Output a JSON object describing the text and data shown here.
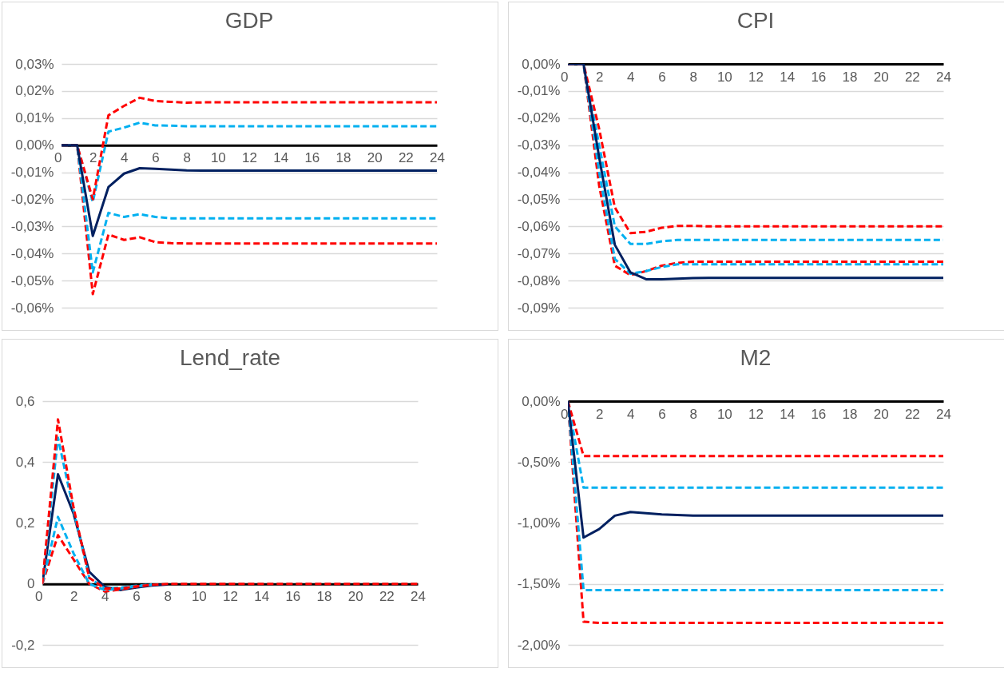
{
  "chart_data": [
    {
      "type": "line",
      "title": "GDP",
      "x": [
        0,
        1,
        2,
        3,
        4,
        5,
        6,
        7,
        8,
        9,
        10,
        11,
        12,
        13,
        14,
        15,
        16,
        17,
        18,
        19,
        20,
        21,
        22,
        23,
        24
      ],
      "xlim": [
        0,
        24
      ],
      "xticks": [
        0,
        2,
        4,
        6,
        8,
        10,
        12,
        14,
        16,
        18,
        20,
        22,
        24
      ],
      "ylim": [
        -0.06,
        0.03
      ],
      "yticks": [
        {
          "value": -0.06,
          "label": "-0,06%"
        },
        {
          "value": -0.05,
          "label": "-0,05%"
        },
        {
          "value": -0.04,
          "label": "-0,04%"
        },
        {
          "value": -0.03,
          "label": "-0,03%"
        },
        {
          "value": -0.02,
          "label": "-0,02%"
        },
        {
          "value": -0.01,
          "label": "-0,01%"
        },
        {
          "value": 0,
          "label": "0,00%"
        },
        {
          "value": 0.01,
          "label": "0,01%"
        },
        {
          "value": 0.02,
          "label": "0,02%"
        },
        {
          "value": 0.03,
          "label": "0,03%"
        }
      ],
      "grid": "y",
      "series": [
        {
          "color": "#ff0000",
          "line_style": "dashed",
          "values": [
            0,
            0,
            -0.055,
            -0.033,
            -0.035,
            -0.034,
            -0.0358,
            -0.0362,
            -0.0363,
            -0.0363,
            -0.0363,
            -0.0363,
            -0.0363,
            -0.0363,
            -0.0363,
            -0.0363,
            -0.0363,
            -0.0363,
            -0.0363,
            -0.0363,
            -0.0363,
            -0.0363,
            -0.0363,
            -0.0363,
            -0.0363
          ]
        },
        {
          "color": "#00b0f0",
          "line_style": "dashed",
          "values": [
            0,
            0,
            -0.047,
            -0.025,
            -0.0265,
            -0.0255,
            -0.0265,
            -0.027,
            -0.027,
            -0.027,
            -0.027,
            -0.027,
            -0.027,
            -0.027,
            -0.027,
            -0.027,
            -0.027,
            -0.027,
            -0.027,
            -0.027,
            -0.027,
            -0.027,
            -0.027,
            -0.027,
            -0.027
          ]
        },
        {
          "color": "#00b0f0",
          "line_style": "dashed",
          "values": [
            0,
            0,
            -0.021,
            0.005,
            0.0065,
            0.0083,
            0.0073,
            0.0072,
            0.007,
            0.007,
            0.007,
            0.007,
            0.007,
            0.007,
            0.007,
            0.007,
            0.007,
            0.007,
            0.007,
            0.007,
            0.007,
            0.007,
            0.007,
            0.007,
            0.007
          ]
        },
        {
          "color": "#ff0000",
          "line_style": "dashed",
          "values": [
            0,
            0,
            -0.02,
            0.011,
            0.0145,
            0.0175,
            0.0163,
            0.016,
            0.0157,
            0.0158,
            0.0158,
            0.0158,
            0.0158,
            0.0158,
            0.0158,
            0.0158,
            0.0158,
            0.0158,
            0.0158,
            0.0158,
            0.0158,
            0.0158,
            0.0158,
            0.0158,
            0.0158
          ]
        },
        {
          "color": "#002060",
          "line_style": "solid",
          "values": [
            0,
            0,
            -0.0335,
            -0.0155,
            -0.0105,
            -0.0085,
            -0.0087,
            -0.009,
            -0.0093,
            -0.0094,
            -0.0094,
            -0.0094,
            -0.0094,
            -0.0094,
            -0.0094,
            -0.0094,
            -0.0094,
            -0.0094,
            -0.0094,
            -0.0094,
            -0.0094,
            -0.0094,
            -0.0094,
            -0.0094,
            -0.0094
          ]
        }
      ]
    },
    {
      "type": "line",
      "title": "CPI",
      "x": [
        0,
        1,
        2,
        3,
        4,
        5,
        6,
        7,
        8,
        9,
        10,
        11,
        12,
        13,
        14,
        15,
        16,
        17,
        18,
        19,
        20,
        21,
        22,
        23,
        24
      ],
      "xlim": [
        0,
        24
      ],
      "xticks": [
        0,
        2,
        4,
        6,
        8,
        10,
        12,
        14,
        16,
        18,
        20,
        22,
        24
      ],
      "ylim": [
        -0.09,
        0
      ],
      "yticks": [
        {
          "value": -0.09,
          "label": "-0,09%"
        },
        {
          "value": -0.08,
          "label": "-0,08%"
        },
        {
          "value": -0.07,
          "label": "-0,07%"
        },
        {
          "value": -0.06,
          "label": "-0,06%"
        },
        {
          "value": -0.05,
          "label": "-0,05%"
        },
        {
          "value": -0.04,
          "label": "-0,04%"
        },
        {
          "value": -0.03,
          "label": "-0,03%"
        },
        {
          "value": -0.02,
          "label": "-0,02%"
        },
        {
          "value": -0.01,
          "label": "-0,01%"
        },
        {
          "value": 0,
          "label": "0,00%"
        }
      ],
      "grid": "y",
      "series": [
        {
          "color": "#ff0000",
          "line_style": "dashed",
          "values": [
            0,
            0,
            -0.045,
            -0.0745,
            -0.078,
            -0.0765,
            -0.0745,
            -0.0735,
            -0.073,
            -0.073,
            -0.073,
            -0.073,
            -0.073,
            -0.073,
            -0.073,
            -0.073,
            -0.073,
            -0.073,
            -0.073,
            -0.073,
            -0.073,
            -0.073,
            -0.073,
            -0.073,
            -0.073
          ]
        },
        {
          "color": "#00b0f0",
          "line_style": "dashed",
          "values": [
            0,
            0,
            -0.04,
            -0.072,
            -0.0775,
            -0.0765,
            -0.075,
            -0.074,
            -0.074,
            -0.074,
            -0.074,
            -0.074,
            -0.074,
            -0.074,
            -0.074,
            -0.074,
            -0.074,
            -0.074,
            -0.074,
            -0.074,
            -0.074,
            -0.074,
            -0.074,
            -0.074,
            -0.074
          ]
        },
        {
          "color": "#00b0f0",
          "line_style": "dashed",
          "values": [
            0,
            0,
            -0.03,
            -0.06,
            -0.0665,
            -0.0665,
            -0.0655,
            -0.065,
            -0.065,
            -0.065,
            -0.065,
            -0.065,
            -0.065,
            -0.065,
            -0.065,
            -0.065,
            -0.065,
            -0.065,
            -0.065,
            -0.065,
            -0.065,
            -0.065,
            -0.065,
            -0.065,
            -0.065
          ]
        },
        {
          "color": "#ff0000",
          "line_style": "dashed",
          "values": [
            0,
            0,
            -0.024,
            -0.053,
            -0.0625,
            -0.062,
            -0.0605,
            -0.0598,
            -0.0598,
            -0.06,
            -0.06,
            -0.06,
            -0.06,
            -0.06,
            -0.06,
            -0.06,
            -0.06,
            -0.06,
            -0.06,
            -0.06,
            -0.06,
            -0.06,
            -0.06,
            -0.06,
            -0.06
          ]
        },
        {
          "color": "#002060",
          "line_style": "solid",
          "values": [
            0,
            0,
            -0.0345,
            -0.0668,
            -0.077,
            -0.0795,
            -0.0795,
            -0.0793,
            -0.0791,
            -0.079,
            -0.079,
            -0.079,
            -0.079,
            -0.079,
            -0.079,
            -0.079,
            -0.079,
            -0.079,
            -0.079,
            -0.079,
            -0.079,
            -0.079,
            -0.079,
            -0.079,
            -0.079
          ]
        }
      ]
    },
    {
      "type": "line",
      "title": "Lend_rate",
      "x": [
        0,
        1,
        2,
        3,
        4,
        5,
        6,
        7,
        8,
        9,
        10,
        11,
        12,
        13,
        14,
        15,
        16,
        17,
        18,
        19,
        20,
        21,
        22,
        23,
        24
      ],
      "xlim": [
        0,
        24
      ],
      "xticks": [
        0,
        2,
        4,
        6,
        8,
        10,
        12,
        14,
        16,
        18,
        20,
        22,
        24
      ],
      "ylim": [
        -0.2,
        0.6
      ],
      "yticks": [
        {
          "value": -0.2,
          "label": "-0,2"
        },
        0,
        {
          "value": 0.2,
          "label": "0,2"
        },
        {
          "value": 0.4,
          "label": "0,4"
        },
        {
          "value": 0.6,
          "label": "0,6"
        }
      ],
      "grid": "y",
      "series": [
        {
          "color": "#002060",
          "line_style": "solid",
          "values": [
            0,
            0.36,
            0.23,
            0.04,
            -0.01,
            -0.02,
            -0.012,
            -0.005,
            -0.002,
            null,
            null,
            null,
            null,
            null,
            null,
            null,
            null,
            null,
            null,
            null,
            null,
            null,
            null,
            null,
            null
          ]
        },
        {
          "color": "#ff0000",
          "line_style": "dashed",
          "values": [
            0,
            0.16,
            0.08,
            0,
            -0.025,
            -0.018,
            -0.009,
            -0.003,
            null,
            null,
            null,
            null,
            null,
            null,
            null,
            null,
            null,
            null,
            null,
            null,
            null,
            null,
            null,
            null,
            null
          ]
        },
        {
          "color": "#00b0f0",
          "line_style": "dashed",
          "values": [
            0,
            0.22,
            0.1,
            0,
            -0.02,
            -0.015,
            -0.008,
            -0.003,
            null,
            null,
            null,
            null,
            null,
            null,
            null,
            null,
            null,
            null,
            null,
            null,
            null,
            null,
            null,
            null,
            null
          ]
        },
        {
          "color": "#00b0f0",
          "line_style": "dashed",
          "values": [
            0,
            0.48,
            0.24,
            0.02,
            -0.015,
            -0.012,
            -0.006,
            -0.002,
            null,
            null,
            null,
            null,
            null,
            null,
            null,
            null,
            null,
            null,
            null,
            null,
            null,
            null,
            null,
            null,
            null
          ]
        },
        {
          "color": "#ff0000",
          "line_style": "dashed",
          "values": [
            0,
            0.54,
            0.25,
            0.02,
            -0.015,
            -0.015,
            -0.008,
            -0.003,
            0,
            0,
            0,
            0,
            0,
            0,
            0,
            0,
            0,
            0,
            0,
            0,
            0,
            0,
            0,
            0,
            0
          ]
        }
      ]
    },
    {
      "type": "line",
      "title": "M2",
      "x": [
        0,
        1,
        2,
        3,
        4,
        5,
        6,
        7,
        8,
        9,
        10,
        11,
        12,
        13,
        14,
        15,
        16,
        17,
        18,
        19,
        20,
        21,
        22,
        23,
        24
      ],
      "xlim": [
        0,
        24
      ],
      "xticks": [
        0,
        2,
        4,
        6,
        8,
        10,
        12,
        14,
        16,
        18,
        20,
        22,
        24
      ],
      "ylim": [
        -2,
        0
      ],
      "yticks": [
        {
          "value": -2,
          "label": "-2,00%"
        },
        {
          "value": -1.5,
          "label": "-1,50%"
        },
        {
          "value": -1,
          "label": "-1,00%"
        },
        {
          "value": -0.5,
          "label": "-0,50%"
        },
        {
          "value": 0,
          "label": "0,00%"
        }
      ],
      "grid": "y",
      "series": [
        {
          "color": "#ff0000",
          "line_style": "dashed",
          "values": [
            0,
            -1.81,
            -1.82,
            -1.82,
            -1.82,
            -1.82,
            -1.82,
            -1.82,
            -1.82,
            -1.82,
            -1.82,
            -1.82,
            -1.82,
            -1.82,
            -1.82,
            -1.82,
            -1.82,
            -1.82,
            -1.82,
            -1.82,
            -1.82,
            -1.82,
            -1.82,
            -1.82,
            -1.82
          ]
        },
        {
          "color": "#00b0f0",
          "line_style": "dashed",
          "values": [
            0,
            -1.55,
            -1.55,
            -1.55,
            -1.55,
            -1.55,
            -1.55,
            -1.55,
            -1.55,
            -1.55,
            -1.55,
            -1.55,
            -1.55,
            -1.55,
            -1.55,
            -1.55,
            -1.55,
            -1.55,
            -1.55,
            -1.55,
            -1.55,
            -1.55,
            -1.55,
            -1.55,
            -1.55
          ]
        },
        {
          "color": "#00b0f0",
          "line_style": "dashed",
          "values": [
            0,
            -0.71,
            -0.71,
            -0.71,
            -0.71,
            -0.71,
            -0.71,
            -0.71,
            -0.71,
            -0.71,
            -0.71,
            -0.71,
            -0.71,
            -0.71,
            -0.71,
            -0.71,
            -0.71,
            -0.71,
            -0.71,
            -0.71,
            -0.71,
            -0.71,
            -0.71,
            -0.71,
            -0.71
          ]
        },
        {
          "color": "#ff0000",
          "line_style": "dashed",
          "values": [
            0,
            -0.45,
            -0.45,
            -0.45,
            -0.45,
            -0.45,
            -0.45,
            -0.45,
            -0.45,
            -0.45,
            -0.45,
            -0.45,
            -0.45,
            -0.45,
            -0.45,
            -0.45,
            -0.45,
            -0.45,
            -0.45,
            -0.45,
            -0.45,
            -0.45,
            -0.45,
            -0.45,
            -0.45
          ]
        },
        {
          "color": "#002060",
          "line_style": "solid",
          "values": [
            0,
            -1.12,
            -1.05,
            -0.94,
            -0.91,
            -0.92,
            -0.93,
            -0.935,
            -0.94,
            -0.94,
            -0.94,
            -0.94,
            -0.94,
            -0.94,
            -0.94,
            -0.94,
            -0.94,
            -0.94,
            -0.94,
            -0.94,
            -0.94,
            -0.94,
            -0.94,
            -0.94,
            -0.94
          ]
        }
      ]
    }
  ]
}
